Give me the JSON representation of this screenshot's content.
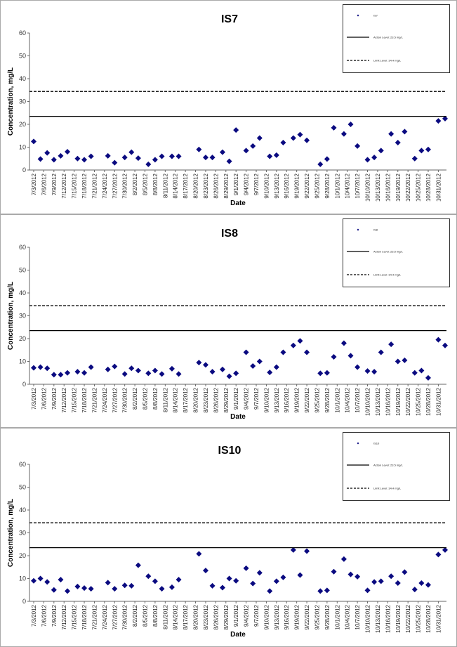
{
  "chart_data": [
    {
      "type": "scatter",
      "title": "IS7",
      "xlabel": "Date",
      "ylabel": "Concentration, mg/L",
      "ylim": [
        0,
        60
      ],
      "yticks": [
        0,
        10,
        20,
        30,
        40,
        50,
        60
      ],
      "xtick_labels": [
        "7/3/2012",
        "7/6/2012",
        "7/9/2012",
        "7/12/2012",
        "7/15/2012",
        "7/18/2012",
        "7/21/2012",
        "7/24/2012",
        "7/27/2012",
        "7/30/2012",
        "8/2/2012",
        "8/5/2012",
        "8/8/2012",
        "8/11/2012",
        "8/14/2012",
        "8/17/2012",
        "8/20/2012",
        "8/23/2012",
        "8/26/2012",
        "8/29/2012",
        "9/1/2012",
        "9/4/2012",
        "9/7/2012",
        "9/10/2012",
        "9/13/2012",
        "9/16/2012",
        "9/19/2012",
        "9/22/2012",
        "9/25/2012",
        "9/28/2012",
        "10/1/2012",
        "10/4/2012",
        "10/7/2012",
        "10/10/2012",
        "10/13/2012",
        "10/16/2012",
        "10/19/2012",
        "10/22/2012",
        "10/25/2012",
        "10/28/2012",
        "10/31/2012"
      ],
      "legend": {
        "position": "top-right",
        "entries": [
          "IS7",
          "Action Level: 23.5 mg/L",
          "Limit Level: 34.4 mg/L"
        ]
      },
      "series": [
        {
          "name": "IS7",
          "marker": "diamond",
          "color": "#0a0a80",
          "points": [
            [
              "7/3/2012",
              12.5
            ],
            [
              "7/5/2012",
              4.8
            ],
            [
              "7/7/2012",
              7.5
            ],
            [
              "7/9/2012",
              4.5
            ],
            [
              "7/11/2012",
              6.2
            ],
            [
              "7/13/2012",
              8
            ],
            [
              "7/16/2012",
              5
            ],
            [
              "7/18/2012",
              4.5
            ],
            [
              "7/20/2012",
              6
            ],
            [
              "7/25/2012",
              6.2
            ],
            [
              "7/27/2012",
              3.2
            ],
            [
              "7/30/2012",
              5.5
            ],
            [
              "8/1/2012",
              7.8
            ],
            [
              "8/3/2012",
              5.2
            ],
            [
              "8/6/2012",
              2.5
            ],
            [
              "8/8/2012",
              4.5
            ],
            [
              "8/10/2012",
              6
            ],
            [
              "8/13/2012",
              6
            ],
            [
              "8/15/2012",
              6
            ],
            [
              "8/21/2012",
              9
            ],
            [
              "8/23/2012",
              5.5
            ],
            [
              "8/25/2012",
              5.5
            ],
            [
              "8/28/2012",
              7.8
            ],
            [
              "8/30/2012",
              3.8
            ],
            [
              "9/1/2012",
              17.5
            ],
            [
              "9/4/2012",
              8.5
            ],
            [
              "9/6/2012",
              10.5
            ],
            [
              "9/8/2012",
              14
            ],
            [
              "9/11/2012",
              6
            ],
            [
              "9/13/2012",
              6.5
            ],
            [
              "9/15/2012",
              12
            ],
            [
              "9/18/2012",
              14
            ],
            [
              "9/20/2012",
              15.5
            ],
            [
              "9/22/2012",
              13
            ],
            [
              "9/26/2012",
              2.5
            ],
            [
              "9/28/2012",
              4.8
            ],
            [
              "9/30/2012",
              18.5
            ],
            [
              "10/3/2012",
              15.8
            ],
            [
              "10/5/2012",
              20
            ],
            [
              "10/7/2012",
              10.5
            ],
            [
              "10/10/2012",
              4.5
            ],
            [
              "10/12/2012",
              5.5
            ],
            [
              "10/14/2012",
              8.5
            ],
            [
              "10/17/2012",
              15.8
            ],
            [
              "10/19/2012",
              12
            ],
            [
              "10/21/2012",
              16.8
            ],
            [
              "10/24/2012",
              5
            ],
            [
              "10/26/2012",
              8.5
            ],
            [
              "10/28/2012",
              9
            ],
            [
              "10/31/2012",
              21.5
            ],
            [
              "11/2/2012",
              22.5
            ]
          ]
        },
        {
          "name": "Action Level: 23.5 mg/L",
          "style": "solid",
          "value": 23.5
        },
        {
          "name": "Limit Level: 34.4 mg/L",
          "style": "dashed",
          "value": 34.4
        }
      ]
    },
    {
      "type": "scatter",
      "title": "IS8",
      "xlabel": "Date",
      "ylabel": "Concentration, mg/L",
      "ylim": [
        0,
        60
      ],
      "yticks": [
        0,
        10,
        20,
        30,
        40,
        50,
        60
      ],
      "xtick_labels": [
        "7/3/2012",
        "7/6/2012",
        "7/9/2012",
        "7/12/2012",
        "7/15/2012",
        "7/18/2012",
        "7/21/2012",
        "7/24/2012",
        "7/27/2012",
        "7/30/2012",
        "8/2/2012",
        "8/5/2012",
        "8/8/2012",
        "8/11/2012",
        "8/14/2012",
        "8/17/2012",
        "8/20/2012",
        "8/23/2012",
        "8/26/2012",
        "8/29/2012",
        "9/1/2012",
        "9/4/2012",
        "9/7/2012",
        "9/10/2012",
        "9/13/2012",
        "9/16/2012",
        "9/19/2012",
        "9/22/2012",
        "9/25/2012",
        "9/28/2012",
        "10/1/2012",
        "10/4/2012",
        "10/7/2012",
        "10/10/2012",
        "10/13/2012",
        "10/16/2012",
        "10/19/2012",
        "10/22/2012",
        "10/25/2012",
        "10/28/2012",
        "10/31/2012"
      ],
      "legend": {
        "position": "top-right",
        "entries": [
          "IS8",
          "Action Level: 23.5 mg/L",
          "Limit Level: 34.4 mg/L"
        ]
      },
      "series": [
        {
          "name": "IS8",
          "marker": "diamond",
          "color": "#0a0a80",
          "points": [
            [
              "7/3/2012",
              7.2
            ],
            [
              "7/5/2012",
              7.5
            ],
            [
              "7/7/2012",
              7
            ],
            [
              "7/9/2012",
              4.2
            ],
            [
              "7/11/2012",
              4.2
            ],
            [
              "7/13/2012",
              5
            ],
            [
              "7/16/2012",
              5.5
            ],
            [
              "7/18/2012",
              5
            ],
            [
              "7/20/2012",
              7.5
            ],
            [
              "7/25/2012",
              6.5
            ],
            [
              "7/27/2012",
              7.8
            ],
            [
              "7/30/2012",
              4.5
            ],
            [
              "8/1/2012",
              7
            ],
            [
              "8/3/2012",
              6
            ],
            [
              "8/6/2012",
              4.8
            ],
            [
              "8/8/2012",
              6
            ],
            [
              "8/10/2012",
              4.5
            ],
            [
              "8/13/2012",
              6.8
            ],
            [
              "8/15/2012",
              4.5
            ],
            [
              "8/21/2012",
              9.5
            ],
            [
              "8/23/2012",
              8.5
            ],
            [
              "8/25/2012",
              5.5
            ],
            [
              "8/28/2012",
              6.5
            ],
            [
              "8/30/2012",
              3.5
            ],
            [
              "9/1/2012",
              4.8
            ],
            [
              "9/4/2012",
              14
            ],
            [
              "9/6/2012",
              8
            ],
            [
              "9/8/2012",
              10
            ],
            [
              "9/11/2012",
              5.2
            ],
            [
              "9/13/2012",
              7.5
            ],
            [
              "9/15/2012",
              14
            ],
            [
              "9/18/2012",
              17
            ],
            [
              "9/20/2012",
              19
            ],
            [
              "9/22/2012",
              14
            ],
            [
              "9/26/2012",
              4.8
            ],
            [
              "9/28/2012",
              5
            ],
            [
              "9/30/2012",
              12
            ],
            [
              "10/3/2012",
              18
            ],
            [
              "10/5/2012",
              12.5
            ],
            [
              "10/7/2012",
              7.5
            ],
            [
              "10/10/2012",
              5.8
            ],
            [
              "10/12/2012",
              5.5
            ],
            [
              "10/14/2012",
              14
            ],
            [
              "10/17/2012",
              17.5
            ],
            [
              "10/19/2012",
              10
            ],
            [
              "10/21/2012",
              10.5
            ],
            [
              "10/24/2012",
              5
            ],
            [
              "10/26/2012",
              6
            ],
            [
              "10/28/2012",
              2.8
            ],
            [
              "10/31/2012",
              19.5
            ],
            [
              "11/2/2012",
              17
            ]
          ]
        },
        {
          "name": "Action Level: 23.5 mg/L",
          "style": "solid",
          "value": 23.5
        },
        {
          "name": "Limit Level: 34.4 mg/L",
          "style": "dashed",
          "value": 34.4
        }
      ]
    },
    {
      "type": "scatter",
      "title": "IS10",
      "xlabel": "Date",
      "ylabel": "Concentration, mg/L",
      "ylim": [
        0,
        60
      ],
      "yticks": [
        0,
        10,
        20,
        30,
        40,
        50,
        60
      ],
      "xtick_labels": [
        "7/3/2012",
        "7/6/2012",
        "7/9/2012",
        "7/12/2012",
        "7/15/2012",
        "7/18/2012",
        "7/21/2012",
        "7/24/2012",
        "7/27/2012",
        "7/30/2012",
        "8/2/2012",
        "8/5/2012",
        "8/8/2012",
        "8/11/2012",
        "8/14/2012",
        "8/17/2012",
        "8/20/2012",
        "8/23/2012",
        "8/26/2012",
        "8/29/2012",
        "9/1/2012",
        "9/4/2012",
        "9/7/2012",
        "9/10/2012",
        "9/13/2012",
        "9/16/2012",
        "9/19/2012",
        "9/22/2012",
        "9/25/2012",
        "9/28/2012",
        "10/1/2012",
        "10/4/2012",
        "10/7/2012",
        "10/10/2012",
        "10/13/2012",
        "10/16/2012",
        "10/19/2012",
        "10/22/2012",
        "10/25/2012",
        "10/28/2012",
        "10/31/2012"
      ],
      "legend": {
        "position": "top-right",
        "entries": [
          "IS10",
          "Action Level: 23.5 mg/L",
          "Limit Level: 34.4 mg/L"
        ]
      },
      "series": [
        {
          "name": "IS10",
          "marker": "diamond",
          "color": "#0a0a80",
          "points": [
            [
              "7/3/2012",
              9
            ],
            [
              "7/5/2012",
              10
            ],
            [
              "7/7/2012",
              8.5
            ],
            [
              "7/9/2012",
              5
            ],
            [
              "7/11/2012",
              9.5
            ],
            [
              "7/13/2012",
              4.5
            ],
            [
              "7/16/2012",
              6.5
            ],
            [
              "7/18/2012",
              5.8
            ],
            [
              "7/20/2012",
              5.5
            ],
            [
              "7/25/2012",
              8.2
            ],
            [
              "7/27/2012",
              5.5
            ],
            [
              "7/30/2012",
              7
            ],
            [
              "8/1/2012",
              6.8
            ],
            [
              "8/3/2012",
              15.8
            ],
            [
              "8/6/2012",
              11
            ],
            [
              "8/8/2012",
              8.8
            ],
            [
              "8/10/2012",
              5.5
            ],
            [
              "8/13/2012",
              6.2
            ],
            [
              "8/15/2012",
              9.5
            ],
            [
              "8/21/2012",
              20.8
            ],
            [
              "8/23/2012",
              13.5
            ],
            [
              "8/25/2012",
              6.8
            ],
            [
              "8/28/2012",
              6
            ],
            [
              "8/30/2012",
              10
            ],
            [
              "9/1/2012",
              9
            ],
            [
              "9/4/2012",
              14.5
            ],
            [
              "9/6/2012",
              7.8
            ],
            [
              "9/8/2012",
              12.5
            ],
            [
              "9/11/2012",
              4.5
            ],
            [
              "9/13/2012",
              8.8
            ],
            [
              "9/15/2012",
              10.5
            ],
            [
              "9/18/2012",
              22.5
            ],
            [
              "9/20/2012",
              11.5
            ],
            [
              "9/22/2012",
              22
            ],
            [
              "9/26/2012",
              4.5
            ],
            [
              "9/28/2012",
              4.8
            ],
            [
              "9/30/2012",
              13
            ],
            [
              "10/3/2012",
              18.5
            ],
            [
              "10/5/2012",
              11.8
            ],
            [
              "10/7/2012",
              10.8
            ],
            [
              "10/10/2012",
              4.8
            ],
            [
              "10/12/2012",
              8.5
            ],
            [
              "10/14/2012",
              8.8
            ],
            [
              "10/17/2012",
              11
            ],
            [
              "10/19/2012",
              8
            ],
            [
              "10/21/2012",
              12.8
            ],
            [
              "10/24/2012",
              5.2
            ],
            [
              "10/26/2012",
              8
            ],
            [
              "10/28/2012",
              7.2
            ],
            [
              "10/31/2012",
              20.5
            ],
            [
              "11/2/2012",
              22.5
            ]
          ]
        },
        {
          "name": "Action Level: 23.5 mg/L",
          "style": "solid",
          "value": 23.5
        },
        {
          "name": "Limit Level: 34.4 mg/L",
          "style": "dashed",
          "value": 34.4
        }
      ]
    }
  ]
}
